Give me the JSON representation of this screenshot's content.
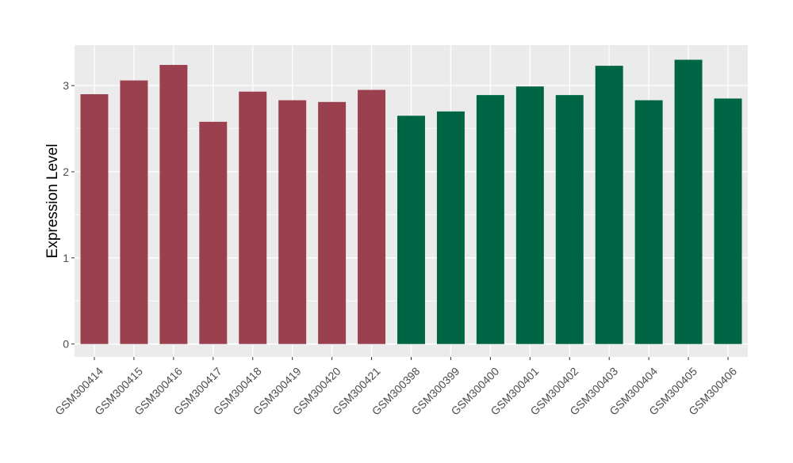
{
  "chart_data": {
    "type": "bar",
    "ylabel": "Expression Level",
    "xlabel": "",
    "ylim": [
      -0.15,
      3.47
    ],
    "yticks": [
      0,
      1,
      2,
      3
    ],
    "grid": true,
    "legend": "none",
    "colors": {
      "group1": "#9a404e",
      "group2": "#006544",
      "panel": "#ebebeb",
      "grid": "#ffffff"
    },
    "categories": [
      "GSM300414",
      "GSM300415",
      "GSM300416",
      "GSM300417",
      "GSM300418",
      "GSM300419",
      "GSM300420",
      "GSM300421",
      "GSM300398",
      "GSM300399",
      "GSM300400",
      "GSM300401",
      "GSM300402",
      "GSM300403",
      "GSM300404",
      "GSM300405",
      "GSM300406"
    ],
    "values": [
      2.9,
      3.06,
      3.24,
      2.58,
      2.93,
      2.83,
      2.81,
      2.95,
      2.65,
      2.7,
      2.89,
      2.99,
      2.89,
      3.23,
      2.83,
      3.3,
      2.85
    ],
    "groups": [
      1,
      1,
      1,
      1,
      1,
      1,
      1,
      1,
      2,
      2,
      2,
      2,
      2,
      2,
      2,
      2,
      2
    ]
  }
}
